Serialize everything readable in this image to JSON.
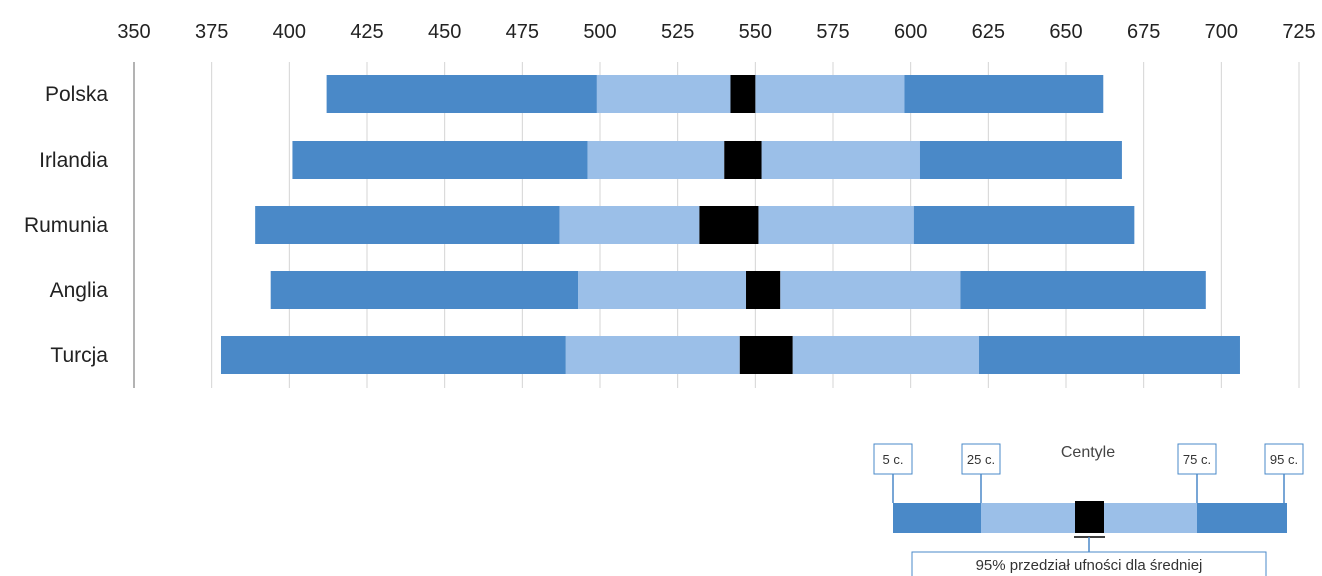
{
  "colors": {
    "outer": "#4a89c8",
    "inner": "#9bbfe8",
    "ci": "#000000",
    "grid": "#d4d4d4",
    "axis": "#9a9a9a",
    "legend_border": "#4a89c8"
  },
  "chart_data": {
    "type": "bar",
    "orientation": "horizontal",
    "xlim": [
      350,
      725
    ],
    "x_ticks": [
      350,
      375,
      400,
      425,
      450,
      475,
      500,
      525,
      550,
      575,
      600,
      625,
      650,
      675,
      700,
      725
    ],
    "grid": true,
    "xlabel": "",
    "ylabel": "",
    "categories": [
      "Polska",
      "Irlandia",
      "Rumunia",
      "Anglia",
      "Turcja"
    ],
    "series": [
      {
        "p5": 412,
        "p25": 499,
        "ci_low": 542,
        "ci_high": 550,
        "p75": 598,
        "p95": 662
      },
      {
        "p5": 401,
        "p25": 496,
        "ci_low": 540,
        "ci_high": 552,
        "p75": 603,
        "p95": 668
      },
      {
        "p5": 389,
        "p25": 487,
        "ci_low": 532,
        "ci_high": 551,
        "p75": 601,
        "p95": 672
      },
      {
        "p5": 394,
        "p25": 493,
        "ci_low": 547,
        "ci_high": 558,
        "p75": 616,
        "p95": 695
      },
      {
        "p5": 378,
        "p25": 489,
        "ci_low": 545,
        "ci_high": 562,
        "p75": 622,
        "p95": 706
      }
    ],
    "legend": {
      "title": "Centyle",
      "labels": [
        "5 c.",
        "25 c.",
        "75 c.",
        "95 c."
      ],
      "ci_label": "95% przedział ufności dla średniej",
      "placement": "bottom-right"
    }
  }
}
